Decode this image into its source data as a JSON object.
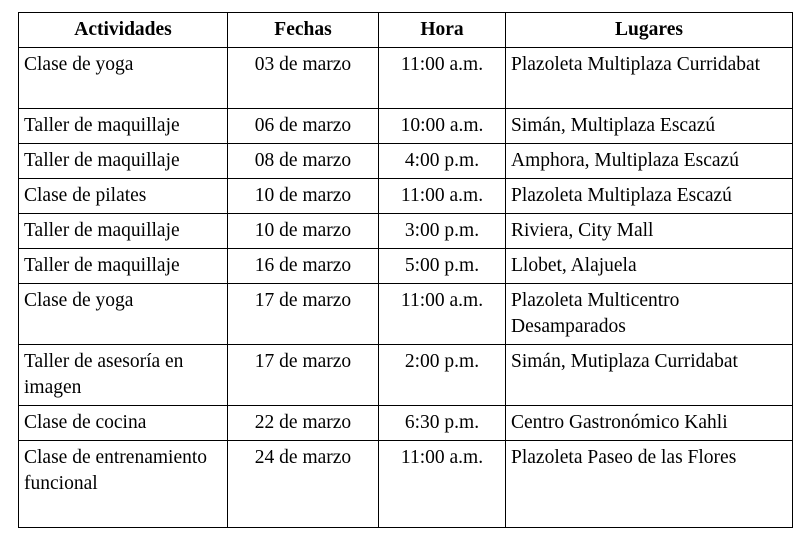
{
  "table": {
    "headers": [
      "Actividades",
      "Fechas",
      "Hora",
      "Lugares"
    ],
    "rows": [
      [
        "Clase de yoga",
        "03 de marzo",
        "11:00 a.m.",
        "Plazoleta Multiplaza Curridabat"
      ],
      [
        "Taller de maquillaje",
        "06 de marzo",
        "10:00 a.m.",
        "Simán, Multiplaza Escazú"
      ],
      [
        "Taller de maquillaje",
        "08 de marzo",
        "4:00 p.m.",
        "Amphora, Multiplaza Escazú"
      ],
      [
        "Clase de pilates",
        "10 de marzo",
        "11:00 a.m.",
        "Plazoleta Multiplaza Escazú"
      ],
      [
        "Taller de maquillaje",
        "10 de marzo",
        "3:00 p.m.",
        "Riviera, City Mall"
      ],
      [
        "Taller de maquillaje",
        "16 de marzo",
        "5:00 p.m.",
        "Llobet, Alajuela"
      ],
      [
        "Clase de yoga",
        "17 de marzo",
        "11:00 a.m.",
        "Plazoleta Multicentro Desamparados"
      ],
      [
        "Taller de asesoría en imagen",
        "17 de marzo",
        "2:00 p.m.",
        "Simán, Mutiplaza Curridabat"
      ],
      [
        "Clase de cocina",
        "22 de marzo",
        "6:30 p.m.",
        "Centro Gastronómico Kahli"
      ],
      [
        "Clase de entrenamiento funcional",
        "24 de marzo",
        "11:00 a.m.",
        "Plazoleta Paseo de las Flores"
      ]
    ]
  }
}
